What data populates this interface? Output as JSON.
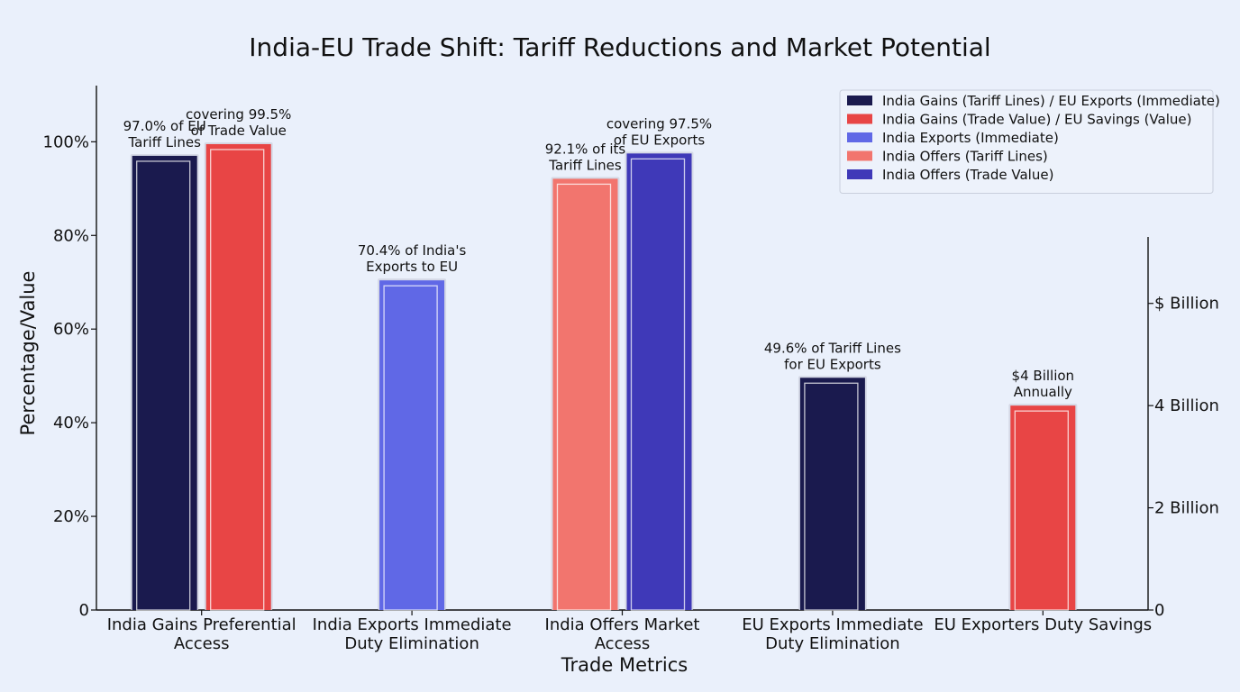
{
  "chart_data": {
    "type": "bar",
    "title": "India-EU Trade Shift: Tariff Reductions and Market Potential",
    "xlabel": "Trade Metrics",
    "ylabel": "Percentage/Value",
    "ylim": [
      0,
      112
    ],
    "yticks": [
      {
        "value": 0,
        "label": "0"
      },
      {
        "value": 20,
        "label": "20%"
      },
      {
        "value": 40,
        "label": "40%"
      },
      {
        "value": 60,
        "label": "60%"
      },
      {
        "value": 80,
        "label": "80%"
      },
      {
        "value": 100,
        "label": "100%"
      }
    ],
    "secondary_axis": {
      "ticks": [
        {
          "value": 0,
          "label": "0"
        },
        {
          "value": 2,
          "label": "2 Billion"
        },
        {
          "value": 4,
          "label": "4 Billion"
        },
        {
          "value": 6,
          "label": "$ Billion"
        }
      ],
      "range": [
        0,
        7.3
      ]
    },
    "categories": [
      [
        "India Gains Preferential",
        "Access"
      ],
      [
        "India Exports Immediate",
        "Duty Elimination"
      ],
      [
        "India Offers Market",
        "Access"
      ],
      [
        "EU Exports Immediate",
        "Duty Elimination"
      ],
      [
        "EU Exporters Duty Savings"
      ]
    ],
    "legend_position": "top-right",
    "grid": false,
    "series": [
      {
        "name": "India Gains (Tariff Lines) / EU Exports (Immediate)",
        "color": "#1a1a4e"
      },
      {
        "name": "India Gains (Trade Value) / EU Savings (Value)",
        "color": "#e84545"
      },
      {
        "name": "India Exports (Immediate)",
        "color": "#6068e6"
      },
      {
        "name": "India Offers (Tariff Lines)",
        "color": "#f2756e"
      },
      {
        "name": "India Offers (Trade Value)",
        "color": "#3f39b8"
      }
    ],
    "bars": [
      {
        "category": 0,
        "series": 0,
        "value": 97.0,
        "label": [
          "97.0% of EU",
          "Tariff Lines"
        ]
      },
      {
        "category": 0,
        "series": 1,
        "value": 99.5,
        "label": [
          "covering 99.5%",
          "of Trade Value"
        ]
      },
      {
        "category": 1,
        "series": 2,
        "value": 70.4,
        "label": [
          "70.4% of India's",
          "Exports to EU"
        ]
      },
      {
        "category": 2,
        "series": 3,
        "value": 92.1,
        "label": [
          "92.1% of its",
          "Tariff Lines"
        ]
      },
      {
        "category": 2,
        "series": 4,
        "value": 97.5,
        "label": [
          "covering 97.5%",
          "of EU Exports"
        ]
      },
      {
        "category": 3,
        "series": 0,
        "value": 49.6,
        "label": [
          "49.6% of Tariff Lines",
          "for EU Exports"
        ]
      },
      {
        "category": 4,
        "series": 1,
        "value": 4,
        "axis": "secondary",
        "label": [
          "$4 Billion",
          "Annually"
        ]
      }
    ]
  }
}
